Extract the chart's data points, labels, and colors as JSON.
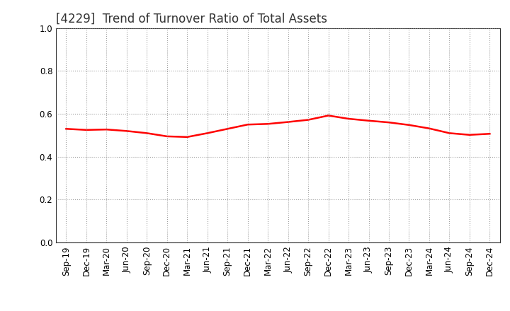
{
  "title": "[4229]  Trend of Turnover Ratio of Total Assets",
  "x_labels": [
    "Sep-19",
    "Dec-19",
    "Mar-20",
    "Jun-20",
    "Sep-20",
    "Dec-20",
    "Mar-21",
    "Jun-21",
    "Sep-21",
    "Dec-21",
    "Mar-22",
    "Jun-22",
    "Sep-22",
    "Dec-22",
    "Mar-23",
    "Jun-23",
    "Sep-23",
    "Dec-23",
    "Mar-24",
    "Jun-24",
    "Sep-24",
    "Dec-24"
  ],
  "y_values": [
    0.53,
    0.525,
    0.527,
    0.52,
    0.51,
    0.495,
    0.492,
    0.51,
    0.53,
    0.55,
    0.553,
    0.562,
    0.572,
    0.592,
    0.577,
    0.568,
    0.56,
    0.548,
    0.532,
    0.51,
    0.502,
    0.507
  ],
  "line_color": "#FF0000",
  "line_width": 1.8,
  "ylim": [
    0.0,
    1.0
  ],
  "yticks": [
    0.0,
    0.2,
    0.4,
    0.6,
    0.8,
    1.0
  ],
  "background_color": "#FFFFFF",
  "grid_color": "#888888",
  "title_fontsize": 12,
  "tick_fontsize": 8.5,
  "title_color": "#333333"
}
